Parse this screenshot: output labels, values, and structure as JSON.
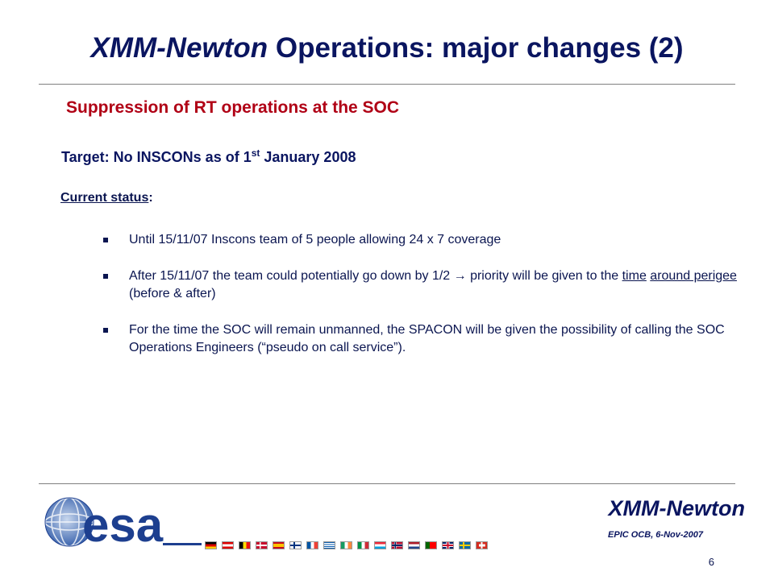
{
  "slide": {
    "title_italic": "XMM-Newton",
    "title_rest": " Operations: major changes (2)",
    "subtitle": "Suppression of RT operations at the SOC",
    "target_text": "Target:  No INSCONs as of  1",
    "target_sup": "st",
    "target_tail": " January 2008",
    "status_label": "Current status",
    "status_colon": ":",
    "bullet1": "Until 15/11/07  Inscons team of 5 people allowing 24 x 7 coverage",
    "bullet2_a": "After 15/11/07 the team could potentially go down by 1/2 → priority will be given to the ",
    "bullet2_u1": "time",
    "bullet2_b": " ",
    "bullet2_u2": "around perigee",
    "bullet2_c": " (before & after)",
    "bullet3": "For the time the SOC will remain unmanned, the SPACON will be given the possibility of calling the SOC Operations Engineers (“pseudo on call service”)."
  },
  "footer": {
    "mission": "XMM-Newton",
    "meeting": "EPIC OCB, 6-Nov-2007",
    "page_number": "6",
    "logo_text": "esa"
  },
  "colors": {
    "title": "#0a1560",
    "subtitle": "#b00015",
    "esa_logo": "#1d3f8f"
  }
}
